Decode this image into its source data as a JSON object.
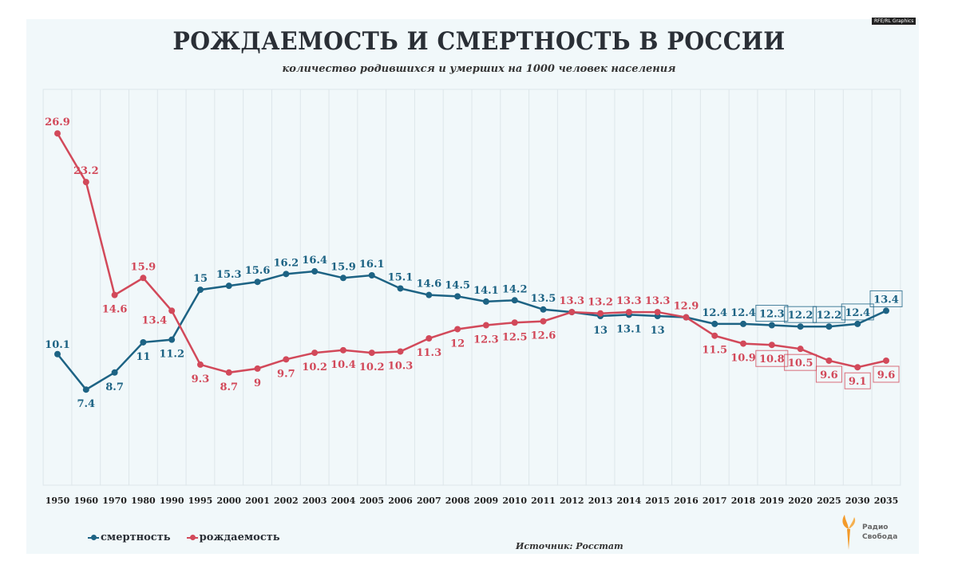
{
  "header": {
    "credit": "RFE/RL Graphics"
  },
  "footer": {
    "source": "Источник: Росстат",
    "logo": "Радио Свобода"
  },
  "colors": {
    "mortality": "#1d6384",
    "births": "#d2495a",
    "background": "#f1f8fa",
    "grid": "#dde6ea"
  },
  "chart_data": {
    "type": "line",
    "title": "РОЖДАЕМОСТЬ И СМЕРТНОСТЬ В РОССИИ",
    "subtitle": "количество родившихся и умерших на 1000 человек населения",
    "categories": [
      "1950",
      "1960",
      "1970",
      "1980",
      "1990",
      "1995",
      "2000",
      "2001",
      "2002",
      "2003",
      "2004",
      "2005",
      "2006",
      "2007",
      "2008",
      "2009",
      "2010",
      "2011",
      "2012",
      "2013",
      "2014",
      "2015",
      "2016",
      "2017",
      "2018",
      "2019",
      "2020",
      "2025",
      "2030",
      "2035"
    ],
    "ylim": [
      0,
      28
    ],
    "grid": "vertical",
    "legend_placement": "bottom-left",
    "series": [
      {
        "name": "смертность",
        "color": "#1d6384",
        "values": [
          10.1,
          7.4,
          8.7,
          11,
          11.2,
          15,
          15.3,
          15.6,
          16.2,
          16.4,
          15.9,
          16.1,
          15.1,
          14.6,
          14.5,
          14.1,
          14.2,
          13.5,
          13.3,
          13,
          13.1,
          13,
          12.9,
          12.4,
          12.4,
          12.3,
          12.2,
          12.2,
          12.4,
          13.4
        ],
        "labels": [
          "10.1",
          "7.4",
          "8.7",
          "11",
          "11.2",
          "15",
          "15.3",
          "15.6",
          "16.2",
          "16.4",
          "15.9",
          "16.1",
          "15.1",
          "14.6",
          "14.5",
          "14.1",
          "14.2",
          "13.5",
          "",
          "13",
          "13.1",
          "13",
          "",
          "12.4",
          "12.4",
          "12.3",
          "12.2",
          "12.2",
          "12.4",
          "13.4"
        ],
        "label_pos": [
          "above",
          "below",
          "below",
          "below",
          "below",
          "above",
          "above",
          "above",
          "above",
          "above",
          "above",
          "above",
          "above",
          "above",
          "above",
          "above",
          "above",
          "above",
          "above",
          "below",
          "below",
          "below",
          "above",
          "above",
          "above",
          "above",
          "above",
          "above",
          "above",
          "above"
        ],
        "boxed": [
          false,
          false,
          false,
          false,
          false,
          false,
          false,
          false,
          false,
          false,
          false,
          false,
          false,
          false,
          false,
          false,
          false,
          false,
          false,
          false,
          false,
          false,
          false,
          false,
          false,
          true,
          true,
          true,
          true,
          true
        ]
      },
      {
        "name": "рождаемость",
        "color": "#d2495a",
        "values": [
          26.9,
          23.2,
          14.6,
          15.9,
          13.4,
          9.3,
          8.7,
          9,
          9.7,
          10.2,
          10.4,
          10.2,
          10.3,
          11.3,
          12,
          12.3,
          12.5,
          12.6,
          13.3,
          13.2,
          13.3,
          13.3,
          12.9,
          11.5,
          10.9,
          10.8,
          10.5,
          9.6,
          9.1,
          9.6
        ],
        "labels": [
          "26.9",
          "23.2",
          "14.6",
          "15.9",
          "13.4",
          "9.3",
          "8.7",
          "9",
          "9.7",
          "10.2",
          "10.4",
          "10.2",
          "10.3",
          "11.3",
          "12",
          "12.3",
          "12.5",
          "12.6",
          "13.3",
          "13.2",
          "13.3",
          "13.3",
          "12.9",
          "11.5",
          "10.9",
          "10.8",
          "10.5",
          "9.6",
          "9.1",
          "9.6"
        ],
        "label_pos": [
          "above",
          "above",
          "below",
          "above",
          "left",
          "below",
          "below",
          "below",
          "below",
          "below",
          "below",
          "below",
          "below",
          "below",
          "below",
          "below",
          "below",
          "below",
          "above",
          "above",
          "above",
          "above",
          "above",
          "below",
          "below",
          "below",
          "below",
          "below",
          "below",
          "below"
        ],
        "boxed": [
          false,
          false,
          false,
          false,
          false,
          false,
          false,
          false,
          false,
          false,
          false,
          false,
          false,
          false,
          false,
          false,
          false,
          false,
          false,
          false,
          false,
          false,
          false,
          false,
          false,
          true,
          true,
          true,
          true,
          true
        ]
      }
    ]
  }
}
